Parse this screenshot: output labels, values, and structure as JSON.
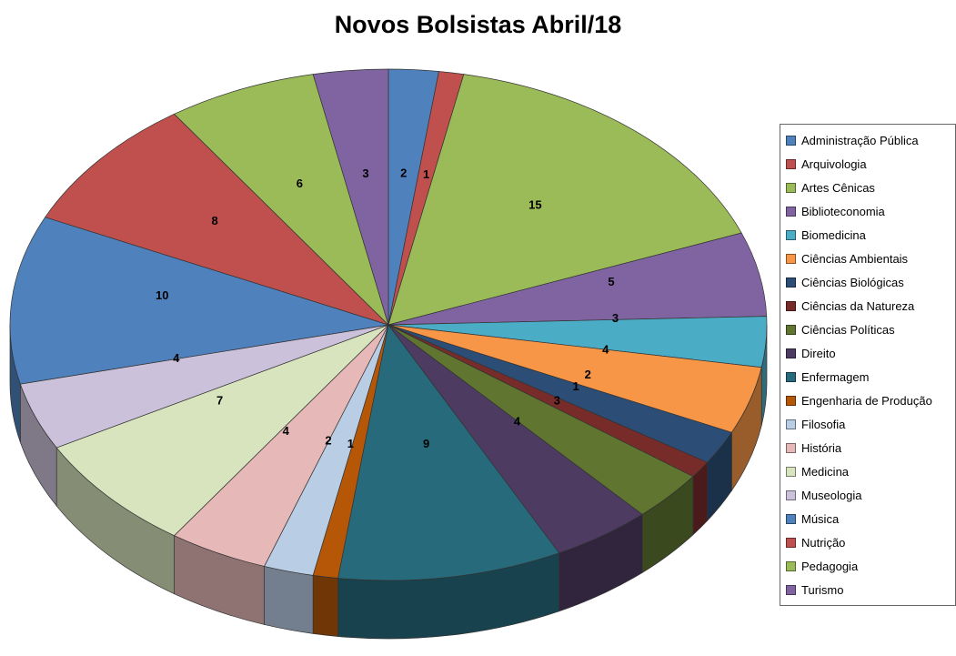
{
  "chart_data": {
    "type": "pie",
    "style": "3d",
    "title": "Novos Bolsistas Abril/18",
    "total": 94,
    "legend_position": "right",
    "data_labels": "values",
    "series": [
      {
        "label": "Administração Pública",
        "value": 2,
        "color": "#4F81BD"
      },
      {
        "label": "Arquivologia",
        "value": 1,
        "color": "#C0504D"
      },
      {
        "label": "Artes Cênicas",
        "value": 15,
        "color": "#9BBB59"
      },
      {
        "label": "Biblioteconomia",
        "value": 5,
        "color": "#8064A2"
      },
      {
        "label": "Biomedicina",
        "value": 3,
        "color": "#4BACC6"
      },
      {
        "label": "Ciências Ambientais",
        "value": 4,
        "color": "#F79646"
      },
      {
        "label": "Ciências Biológicas",
        "value": 2,
        "color": "#2C4D75"
      },
      {
        "label": "Ciências da Natureza",
        "value": 1,
        "color": "#772C2A"
      },
      {
        "label": "Ciências Políticas",
        "value": 3,
        "color": "#5F7530"
      },
      {
        "label": "Direito",
        "value": 4,
        "color": "#4D3B62"
      },
      {
        "label": "Enfermagem",
        "value": 9,
        "color": "#276A7C"
      },
      {
        "label": "Engenharia de Produção",
        "value": 1,
        "color": "#B65708"
      },
      {
        "label": "Filosofia",
        "value": 2,
        "color": "#B9CDE5"
      },
      {
        "label": "História",
        "value": 4,
        "color": "#E6B9B8"
      },
      {
        "label": "Medicina",
        "value": 7,
        "color": "#D7E4BD"
      },
      {
        "label": "Museologia",
        "value": 4,
        "color": "#CCC1DA"
      },
      {
        "label": "Música",
        "value": 10,
        "color": "#4F81BD"
      },
      {
        "label": "Nutrição",
        "value": 8,
        "color": "#C0504D"
      },
      {
        "label": "Pedagogia",
        "value": 6,
        "color": "#9BBB59"
      },
      {
        "label": "Turismo",
        "value": 3,
        "color": "#8064A2"
      }
    ]
  }
}
